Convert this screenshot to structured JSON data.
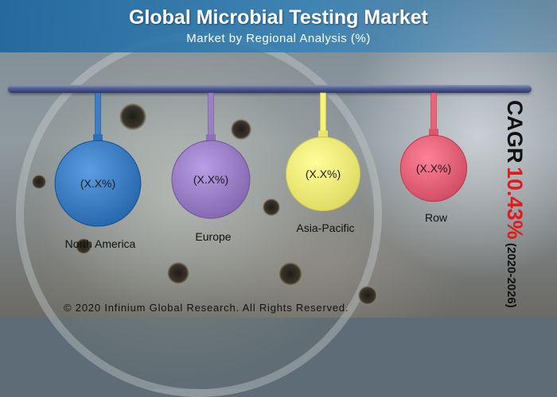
{
  "header": {
    "title": "Global Microbial Testing Market",
    "subtitle": "Market by Regional Analysis (%)"
  },
  "chart_data": {
    "type": "bubble-hanging",
    "categories": [
      "North America",
      "Europe",
      "Asia-Pacific",
      "Row"
    ],
    "value_labels": [
      "(X.X%)",
      "(X.X%)",
      "(X.X%)",
      "(X.X%)"
    ],
    "relative_sizes": [
      1.1,
      1.0,
      0.95,
      0.85
    ],
    "colors": [
      "#3e7ec3",
      "#9b7fc7",
      "#f7f27a",
      "#e8647a"
    ]
  },
  "cagr": {
    "label": "CAGR",
    "value": "10.43%",
    "period": "(2020-2026)"
  },
  "footer": {
    "copyright": "© 2020 Infinium Global Research. All Rights Reserved."
  }
}
